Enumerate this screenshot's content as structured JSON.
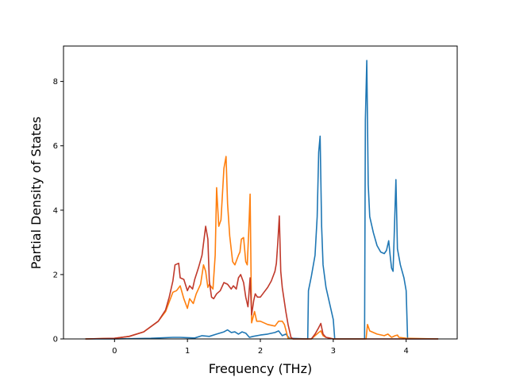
{
  "chart_data": {
    "type": "line",
    "title": "",
    "xlabel": "Frequency (THz)",
    "ylabel": "Partial Density of States",
    "xlim": [
      -0.7,
      4.7
    ],
    "ylim": [
      0,
      9.1
    ],
    "xticks": [
      0,
      1,
      2,
      3,
      4
    ],
    "yticks": [
      0,
      2,
      4,
      6,
      8
    ],
    "grid": false,
    "legend": "none",
    "series": [
      {
        "color": "#1f77b4",
        "points": [
          [
            -0.4,
            0
          ],
          [
            0.0,
            0
          ],
          [
            0.5,
            0.02
          ],
          [
            0.8,
            0.05
          ],
          [
            0.9,
            0.05
          ],
          [
            1.0,
            0.04
          ],
          [
            1.1,
            0.03
          ],
          [
            1.2,
            0.1
          ],
          [
            1.3,
            0.08
          ],
          [
            1.4,
            0.15
          ],
          [
            1.5,
            0.22
          ],
          [
            1.55,
            0.28
          ],
          [
            1.6,
            0.2
          ],
          [
            1.65,
            0.22
          ],
          [
            1.7,
            0.15
          ],
          [
            1.75,
            0.22
          ],
          [
            1.8,
            0.18
          ],
          [
            1.85,
            0.05
          ],
          [
            1.9,
            0.08
          ],
          [
            2.0,
            0.12
          ],
          [
            2.1,
            0.15
          ],
          [
            2.2,
            0.2
          ],
          [
            2.25,
            0.25
          ],
          [
            2.3,
            0.1
          ],
          [
            2.35,
            0.15
          ],
          [
            2.4,
            0.02
          ],
          [
            2.65,
            0.0
          ],
          [
            2.66,
            1.5
          ],
          [
            2.7,
            1.95
          ],
          [
            2.75,
            2.6
          ],
          [
            2.78,
            3.8
          ],
          [
            2.8,
            5.8
          ],
          [
            2.82,
            6.3
          ],
          [
            2.84,
            3.5
          ],
          [
            2.86,
            2.3
          ],
          [
            2.9,
            1.6
          ],
          [
            2.95,
            1.1
          ],
          [
            3.0,
            0.6
          ],
          [
            3.02,
            0.0
          ],
          [
            3.43,
            0.0
          ],
          [
            3.44,
            6.8
          ],
          [
            3.46,
            8.65
          ],
          [
            3.48,
            4.8
          ],
          [
            3.5,
            3.8
          ],
          [
            3.55,
            3.3
          ],
          [
            3.6,
            2.9
          ],
          [
            3.65,
            2.7
          ],
          [
            3.7,
            2.65
          ],
          [
            3.73,
            2.75
          ],
          [
            3.76,
            3.05
          ],
          [
            3.78,
            2.6
          ],
          [
            3.8,
            2.2
          ],
          [
            3.82,
            2.1
          ],
          [
            3.84,
            3.5
          ],
          [
            3.86,
            4.95
          ],
          [
            3.88,
            2.8
          ],
          [
            3.92,
            2.3
          ],
          [
            3.97,
            1.9
          ],
          [
            4.0,
            1.5
          ],
          [
            4.02,
            0.0
          ],
          [
            4.44,
            0.0
          ]
        ]
      },
      {
        "color": "#ff7f0e",
        "points": [
          [
            -0.4,
            0
          ],
          [
            0.0,
            0.02
          ],
          [
            0.2,
            0.08
          ],
          [
            0.4,
            0.22
          ],
          [
            0.6,
            0.55
          ],
          [
            0.7,
            0.85
          ],
          [
            0.8,
            1.45
          ],
          [
            0.85,
            1.5
          ],
          [
            0.9,
            1.65
          ],
          [
            0.95,
            1.25
          ],
          [
            1.0,
            0.95
          ],
          [
            1.03,
            1.25
          ],
          [
            1.08,
            1.1
          ],
          [
            1.12,
            1.4
          ],
          [
            1.18,
            1.7
          ],
          [
            1.22,
            2.3
          ],
          [
            1.25,
            2.1
          ],
          [
            1.28,
            1.6
          ],
          [
            1.3,
            1.7
          ],
          [
            1.35,
            1.55
          ],
          [
            1.38,
            2.6
          ],
          [
            1.4,
            4.7
          ],
          [
            1.43,
            3.5
          ],
          [
            1.46,
            3.7
          ],
          [
            1.5,
            5.3
          ],
          [
            1.53,
            5.67
          ],
          [
            1.55,
            4.2
          ],
          [
            1.58,
            3.2
          ],
          [
            1.62,
            2.4
          ],
          [
            1.65,
            2.3
          ],
          [
            1.7,
            2.6
          ],
          [
            1.72,
            2.7
          ],
          [
            1.74,
            3.1
          ],
          [
            1.77,
            3.15
          ],
          [
            1.8,
            2.4
          ],
          [
            1.82,
            2.3
          ],
          [
            1.84,
            3.3
          ],
          [
            1.86,
            4.5
          ],
          [
            1.88,
            0.5
          ],
          [
            1.92,
            0.85
          ],
          [
            1.95,
            0.55
          ],
          [
            2.0,
            0.55
          ],
          [
            2.1,
            0.45
          ],
          [
            2.2,
            0.4
          ],
          [
            2.25,
            0.55
          ],
          [
            2.3,
            0.55
          ],
          [
            2.33,
            0.45
          ],
          [
            2.38,
            0.02
          ],
          [
            2.45,
            0
          ],
          [
            2.7,
            0
          ],
          [
            2.75,
            0.1
          ],
          [
            2.8,
            0.2
          ],
          [
            2.83,
            0.25
          ],
          [
            2.86,
            0.1
          ],
          [
            2.9,
            0.05
          ],
          [
            2.95,
            0.03
          ],
          [
            3.0,
            0
          ],
          [
            3.45,
            0
          ],
          [
            3.47,
            0.45
          ],
          [
            3.5,
            0.25
          ],
          [
            3.55,
            0.2
          ],
          [
            3.6,
            0.15
          ],
          [
            3.7,
            0.1
          ],
          [
            3.75,
            0.15
          ],
          [
            3.8,
            0.05
          ],
          [
            3.85,
            0.1
          ],
          [
            3.88,
            0.12
          ],
          [
            3.9,
            0.05
          ],
          [
            4.0,
            0.02
          ],
          [
            4.44,
            0
          ]
        ]
      },
      {
        "color": "#c0392b",
        "points": [
          [
            -0.4,
            0
          ],
          [
            0.0,
            0.02
          ],
          [
            0.2,
            0.08
          ],
          [
            0.4,
            0.22
          ],
          [
            0.6,
            0.55
          ],
          [
            0.7,
            0.9
          ],
          [
            0.75,
            1.3
          ],
          [
            0.8,
            1.8
          ],
          [
            0.83,
            2.3
          ],
          [
            0.88,
            2.35
          ],
          [
            0.9,
            1.9
          ],
          [
            0.95,
            1.85
          ],
          [
            1.0,
            1.5
          ],
          [
            1.03,
            1.65
          ],
          [
            1.07,
            1.55
          ],
          [
            1.1,
            1.85
          ],
          [
            1.15,
            2.2
          ],
          [
            1.2,
            2.6
          ],
          [
            1.25,
            3.5
          ],
          [
            1.28,
            3.1
          ],
          [
            1.3,
            1.8
          ],
          [
            1.33,
            1.3
          ],
          [
            1.36,
            1.25
          ],
          [
            1.4,
            1.4
          ],
          [
            1.45,
            1.5
          ],
          [
            1.5,
            1.75
          ],
          [
            1.55,
            1.7
          ],
          [
            1.6,
            1.55
          ],
          [
            1.63,
            1.65
          ],
          [
            1.67,
            1.55
          ],
          [
            1.7,
            1.9
          ],
          [
            1.73,
            2.0
          ],
          [
            1.77,
            1.75
          ],
          [
            1.8,
            1.3
          ],
          [
            1.83,
            1.0
          ],
          [
            1.86,
            1.9
          ],
          [
            1.88,
            0.75
          ],
          [
            1.91,
            1.2
          ],
          [
            1.93,
            1.4
          ],
          [
            1.96,
            1.3
          ],
          [
            2.0,
            1.3
          ],
          [
            2.05,
            1.45
          ],
          [
            2.1,
            1.6
          ],
          [
            2.15,
            1.8
          ],
          [
            2.2,
            2.1
          ],
          [
            2.22,
            2.35
          ],
          [
            2.24,
            3.0
          ],
          [
            2.26,
            3.82
          ],
          [
            2.28,
            2.1
          ],
          [
            2.3,
            1.6
          ],
          [
            2.35,
            0.85
          ],
          [
            2.38,
            0.45
          ],
          [
            2.42,
            0.05
          ],
          [
            2.45,
            0
          ],
          [
            2.7,
            0
          ],
          [
            2.75,
            0.15
          ],
          [
            2.8,
            0.35
          ],
          [
            2.83,
            0.48
          ],
          [
            2.86,
            0.15
          ],
          [
            2.9,
            0.05
          ],
          [
            3.0,
            0
          ],
          [
            4.44,
            0
          ]
        ]
      }
    ]
  }
}
